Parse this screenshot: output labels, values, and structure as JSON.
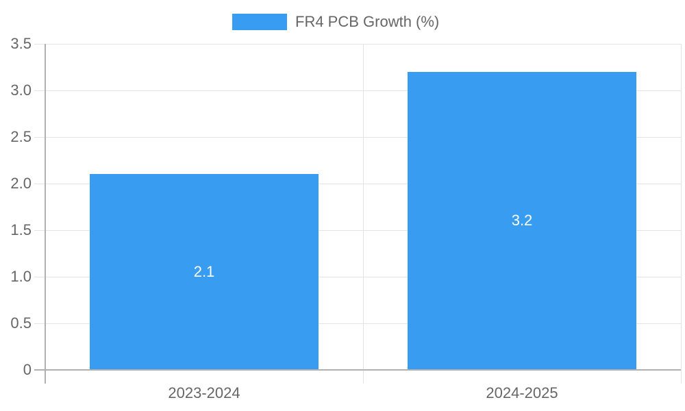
{
  "chart_data": {
    "type": "bar",
    "title": "",
    "categories": [
      "2023-2024",
      "2024-2025"
    ],
    "series": [
      {
        "name": "FR4 PCB Growth (%)",
        "values": [
          2.1,
          3.2
        ],
        "color": "#389cf0"
      }
    ],
    "data_labels": [
      "2.1",
      "3.2"
    ],
    "xlabel": "",
    "ylabel": "",
    "ylim": [
      0,
      3.5
    ],
    "yticks": [
      "0",
      "0.5",
      "1.0",
      "1.5",
      "2.0",
      "2.5",
      "3.0",
      "3.5"
    ],
    "grid": true,
    "legend_position": "top"
  },
  "legend": {
    "label": "FR4 PCB Growth (%)",
    "color": "#389cf0"
  }
}
